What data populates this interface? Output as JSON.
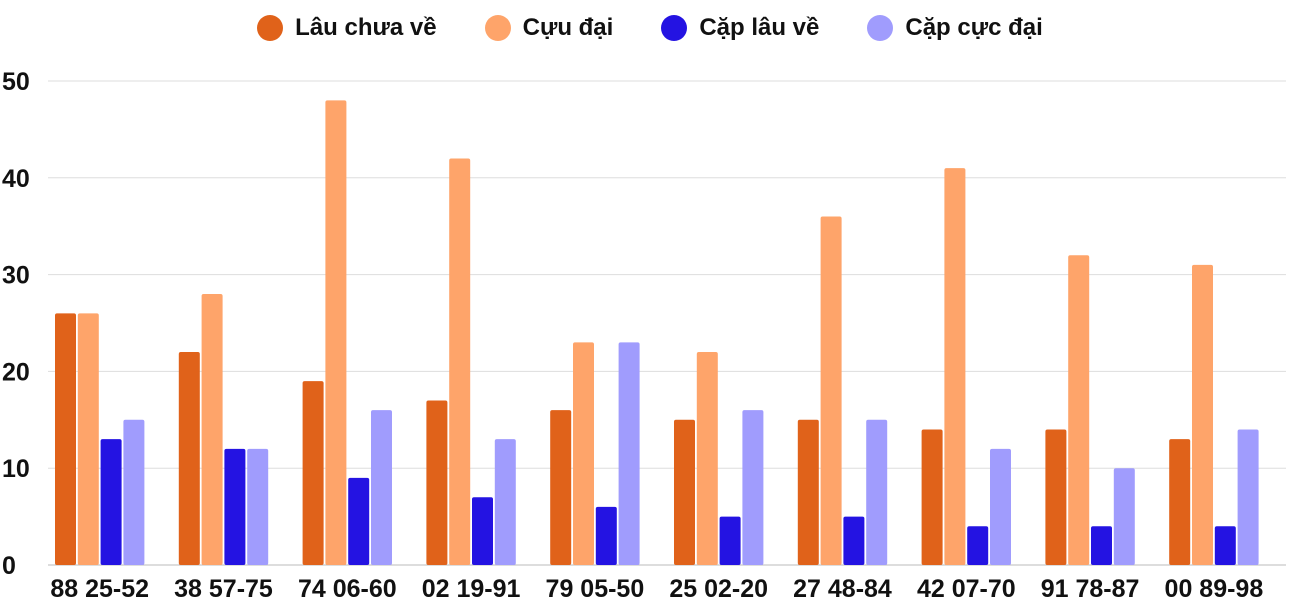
{
  "chart_data": {
    "type": "bar",
    "categories": [
      "88 25-52",
      "38 57-75",
      "74 06-60",
      "02 19-91",
      "79 05-50",
      "25 02-20",
      "27 48-84",
      "42 07-70",
      "91 78-87",
      "00 89-98"
    ],
    "series": [
      {
        "name": "Lâu chưa về",
        "color": "#e0621a",
        "values": [
          26,
          22,
          19,
          17,
          16,
          15,
          15,
          14,
          14,
          13
        ]
      },
      {
        "name": "Cựu đại",
        "color": "#fea46a",
        "values": [
          26,
          28,
          48,
          42,
          23,
          22,
          36,
          41,
          32,
          31
        ]
      },
      {
        "name": "Cặp lâu về",
        "color": "#2413e2",
        "values": [
          13,
          12,
          9,
          7,
          6,
          5,
          5,
          4,
          4,
          4
        ]
      },
      {
        "name": "Cặp cực đại",
        "color": "#a09cfd",
        "values": [
          15,
          12,
          16,
          13,
          23,
          16,
          15,
          12,
          10,
          14
        ]
      }
    ],
    "y_ticks": [
      0,
      10,
      20,
      30,
      40,
      50
    ],
    "ylim": [
      0,
      50
    ],
    "grid": true,
    "legend_position": "top-center",
    "title": "",
    "xlabel": "",
    "ylabel": ""
  }
}
